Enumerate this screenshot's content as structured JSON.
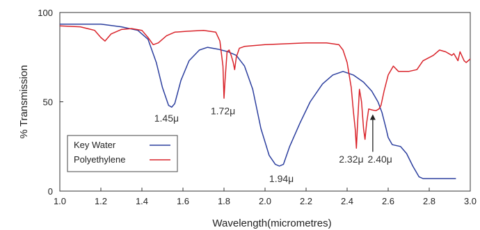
{
  "chart_data": {
    "type": "line",
    "xlabel": "Wavelength(micrometres)",
    "ylabel": "% Transmission",
    "xlim": [
      1.0,
      3.0
    ],
    "ylim": [
      0,
      100
    ],
    "x_ticks": [
      1.0,
      1.2,
      1.4,
      1.6,
      1.8,
      2.0,
      2.2,
      2.4,
      2.6,
      2.8,
      3.0
    ],
    "x_tick_labels": [
      "1.0",
      "1.2",
      "1.4",
      "1.6",
      "1.8",
      "2.0",
      "2.2",
      "2.4",
      "2.6",
      "2.8",
      "3.0"
    ],
    "y_ticks": [
      0,
      50,
      100
    ],
    "y_tick_labels": [
      "0",
      "50",
      "100"
    ],
    "grid": false,
    "legend_position": "bottom-left",
    "series": [
      {
        "name": "Key Water",
        "color": "#2b3e9e",
        "points": [
          [
            1.0,
            93.5
          ],
          [
            1.1,
            93.5
          ],
          [
            1.2,
            93.5
          ],
          [
            1.3,
            92.0
          ],
          [
            1.38,
            90.0
          ],
          [
            1.43,
            85.0
          ],
          [
            1.47,
            72.0
          ],
          [
            1.5,
            58.0
          ],
          [
            1.53,
            48.0
          ],
          [
            1.545,
            47.0
          ],
          [
            1.56,
            49.0
          ],
          [
            1.59,
            62.0
          ],
          [
            1.63,
            73.0
          ],
          [
            1.68,
            79.0
          ],
          [
            1.72,
            80.5
          ],
          [
            1.77,
            79.5
          ],
          [
            1.82,
            78.0
          ],
          [
            1.86,
            76.0
          ],
          [
            1.9,
            70.0
          ],
          [
            1.94,
            57.0
          ],
          [
            1.98,
            35.0
          ],
          [
            2.02,
            20.0
          ],
          [
            2.05,
            15.0
          ],
          [
            2.07,
            14.0
          ],
          [
            2.09,
            15.0
          ],
          [
            2.12,
            25.0
          ],
          [
            2.17,
            38.0
          ],
          [
            2.22,
            50.0
          ],
          [
            2.28,
            60.0
          ],
          [
            2.33,
            65.0
          ],
          [
            2.38,
            67.0
          ],
          [
            2.43,
            65.0
          ],
          [
            2.48,
            61.0
          ],
          [
            2.52,
            56.0
          ],
          [
            2.55,
            50.0
          ],
          [
            2.57,
            44.0
          ],
          [
            2.59,
            35.0
          ],
          [
            2.6,
            30.0
          ],
          [
            2.62,
            26.0
          ],
          [
            2.66,
            25.0
          ],
          [
            2.69,
            21.0
          ],
          [
            2.72,
            14.0
          ],
          [
            2.75,
            8.0
          ],
          [
            2.77,
            7.0
          ],
          [
            2.8,
            7.0
          ],
          [
            2.85,
            7.0
          ],
          [
            2.9,
            7.0
          ],
          [
            2.93,
            7.0
          ]
        ]
      },
      {
        "name": "Polyethylene",
        "color": "#d9232a",
        "points": [
          [
            1.0,
            92.5
          ],
          [
            1.1,
            92.0
          ],
          [
            1.17,
            90.0
          ],
          [
            1.2,
            86.0
          ],
          [
            1.22,
            84.0
          ],
          [
            1.25,
            88.0
          ],
          [
            1.3,
            90.5
          ],
          [
            1.35,
            91.0
          ],
          [
            1.4,
            90.0
          ],
          [
            1.43,
            86.0
          ],
          [
            1.455,
            82.0
          ],
          [
            1.48,
            83.0
          ],
          [
            1.52,
            87.0
          ],
          [
            1.56,
            89.0
          ],
          [
            1.62,
            89.5
          ],
          [
            1.7,
            90.0
          ],
          [
            1.76,
            89.0
          ],
          [
            1.78,
            84.0
          ],
          [
            1.795,
            70.0
          ],
          [
            1.8,
            52.0
          ],
          [
            1.805,
            62.0
          ],
          [
            1.815,
            78.0
          ],
          [
            1.825,
            79.0
          ],
          [
            1.835,
            76.0
          ],
          [
            1.845,
            72.0
          ],
          [
            1.852,
            68.0
          ],
          [
            1.86,
            75.0
          ],
          [
            1.875,
            80.0
          ],
          [
            1.9,
            81.0
          ],
          [
            2.0,
            82.0
          ],
          [
            2.1,
            82.5
          ],
          [
            2.2,
            83.0
          ],
          [
            2.3,
            83.0
          ],
          [
            2.36,
            82.0
          ],
          [
            2.38,
            79.0
          ],
          [
            2.4,
            72.0
          ],
          [
            2.42,
            58.0
          ],
          [
            2.43,
            45.0
          ],
          [
            2.44,
            34.0
          ],
          [
            2.445,
            24.0
          ],
          [
            2.452,
            40.0
          ],
          [
            2.46,
            57.0
          ],
          [
            2.47,
            50.0
          ],
          [
            2.48,
            35.0
          ],
          [
            2.487,
            29.0
          ],
          [
            2.495,
            38.0
          ],
          [
            2.505,
            46.0
          ],
          [
            2.52,
            45.5
          ],
          [
            2.54,
            45.0
          ],
          [
            2.555,
            46.0
          ],
          [
            2.565,
            48.0
          ],
          [
            2.58,
            56.0
          ],
          [
            2.6,
            65.0
          ],
          [
            2.625,
            70.0
          ],
          [
            2.65,
            67.0
          ],
          [
            2.7,
            67.0
          ],
          [
            2.74,
            68.0
          ],
          [
            2.77,
            73.0
          ],
          [
            2.82,
            76.0
          ],
          [
            2.85,
            79.0
          ],
          [
            2.88,
            78.0
          ],
          [
            2.91,
            76.0
          ],
          [
            2.92,
            77.0
          ],
          [
            2.94,
            73.0
          ],
          [
            2.95,
            78.0
          ],
          [
            2.97,
            73.0
          ],
          [
            2.98,
            72.0
          ],
          [
            3.0,
            74.0
          ]
        ]
      }
    ],
    "annotations": [
      {
        "text": "1.45μ",
        "x": 1.52,
        "y": 39
      },
      {
        "text": "1.72μ",
        "x": 1.795,
        "y": 43
      },
      {
        "text": "1.94μ",
        "x": 2.08,
        "y": 5
      },
      {
        "text": "2.32μ",
        "x": 2.42,
        "y": 16
      },
      {
        "text": "2.40μ",
        "x": 2.56,
        "y": 16
      }
    ],
    "arrow": {
      "x": 2.525,
      "y_from": 22,
      "y_to": 43
    }
  }
}
